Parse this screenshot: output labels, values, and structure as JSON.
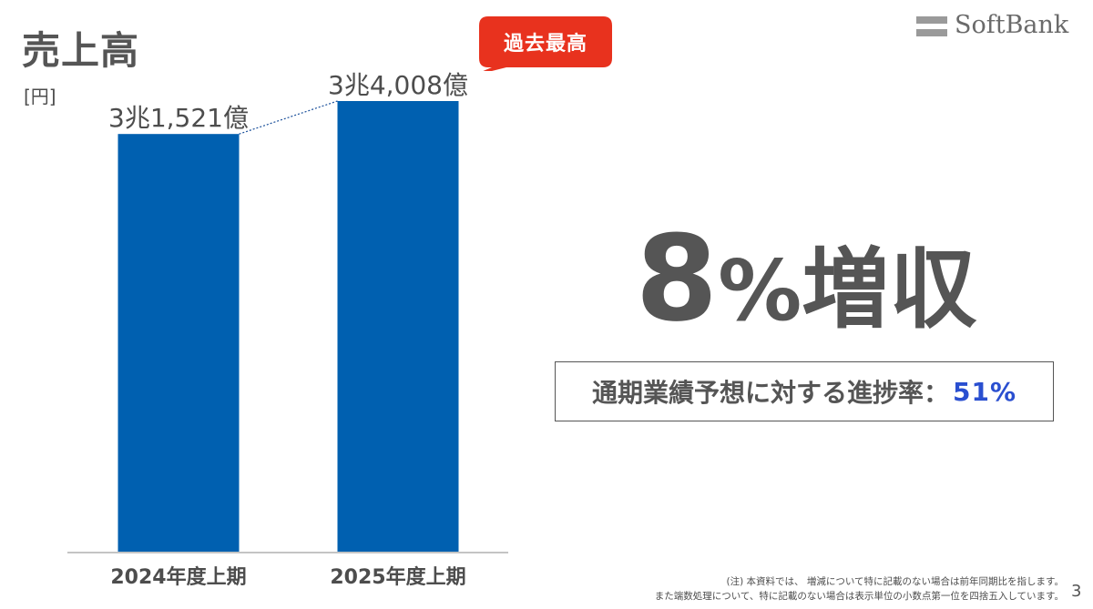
{
  "header": {
    "title": "売上高",
    "unit": "[円]"
  },
  "logo": {
    "text": "SoftBank"
  },
  "badge": {
    "text": "過去最高",
    "color": "#e8321e"
  },
  "chart_data": {
    "type": "bar",
    "categories": [
      "2024年度上期",
      "2025年度上期"
    ],
    "values": [
      31521,
      34008
    ],
    "value_unit": "億円",
    "data_labels": [
      "3兆1,521億",
      "3兆4,008億"
    ],
    "ylabel": "[円]",
    "ylim": [
      0,
      36000
    ],
    "bar_color": "#0060b0",
    "connector": "dotted",
    "grid": false,
    "legend": "none"
  },
  "headline": {
    "number": "8",
    "percent": "%",
    "suffix": "増収"
  },
  "progress": {
    "label": "通期業績予想に対する進捗率：",
    "value": "51%",
    "value_color": "#2a4fd0"
  },
  "footnote": {
    "line1": "(注) 本資料では、 増減について特に記載のない場合は前年同期比を指します。",
    "line2": "また端数処理について、特に記載のない場合は表示単位の小数点第一位を四捨五入しています。"
  },
  "page_number": "3"
}
